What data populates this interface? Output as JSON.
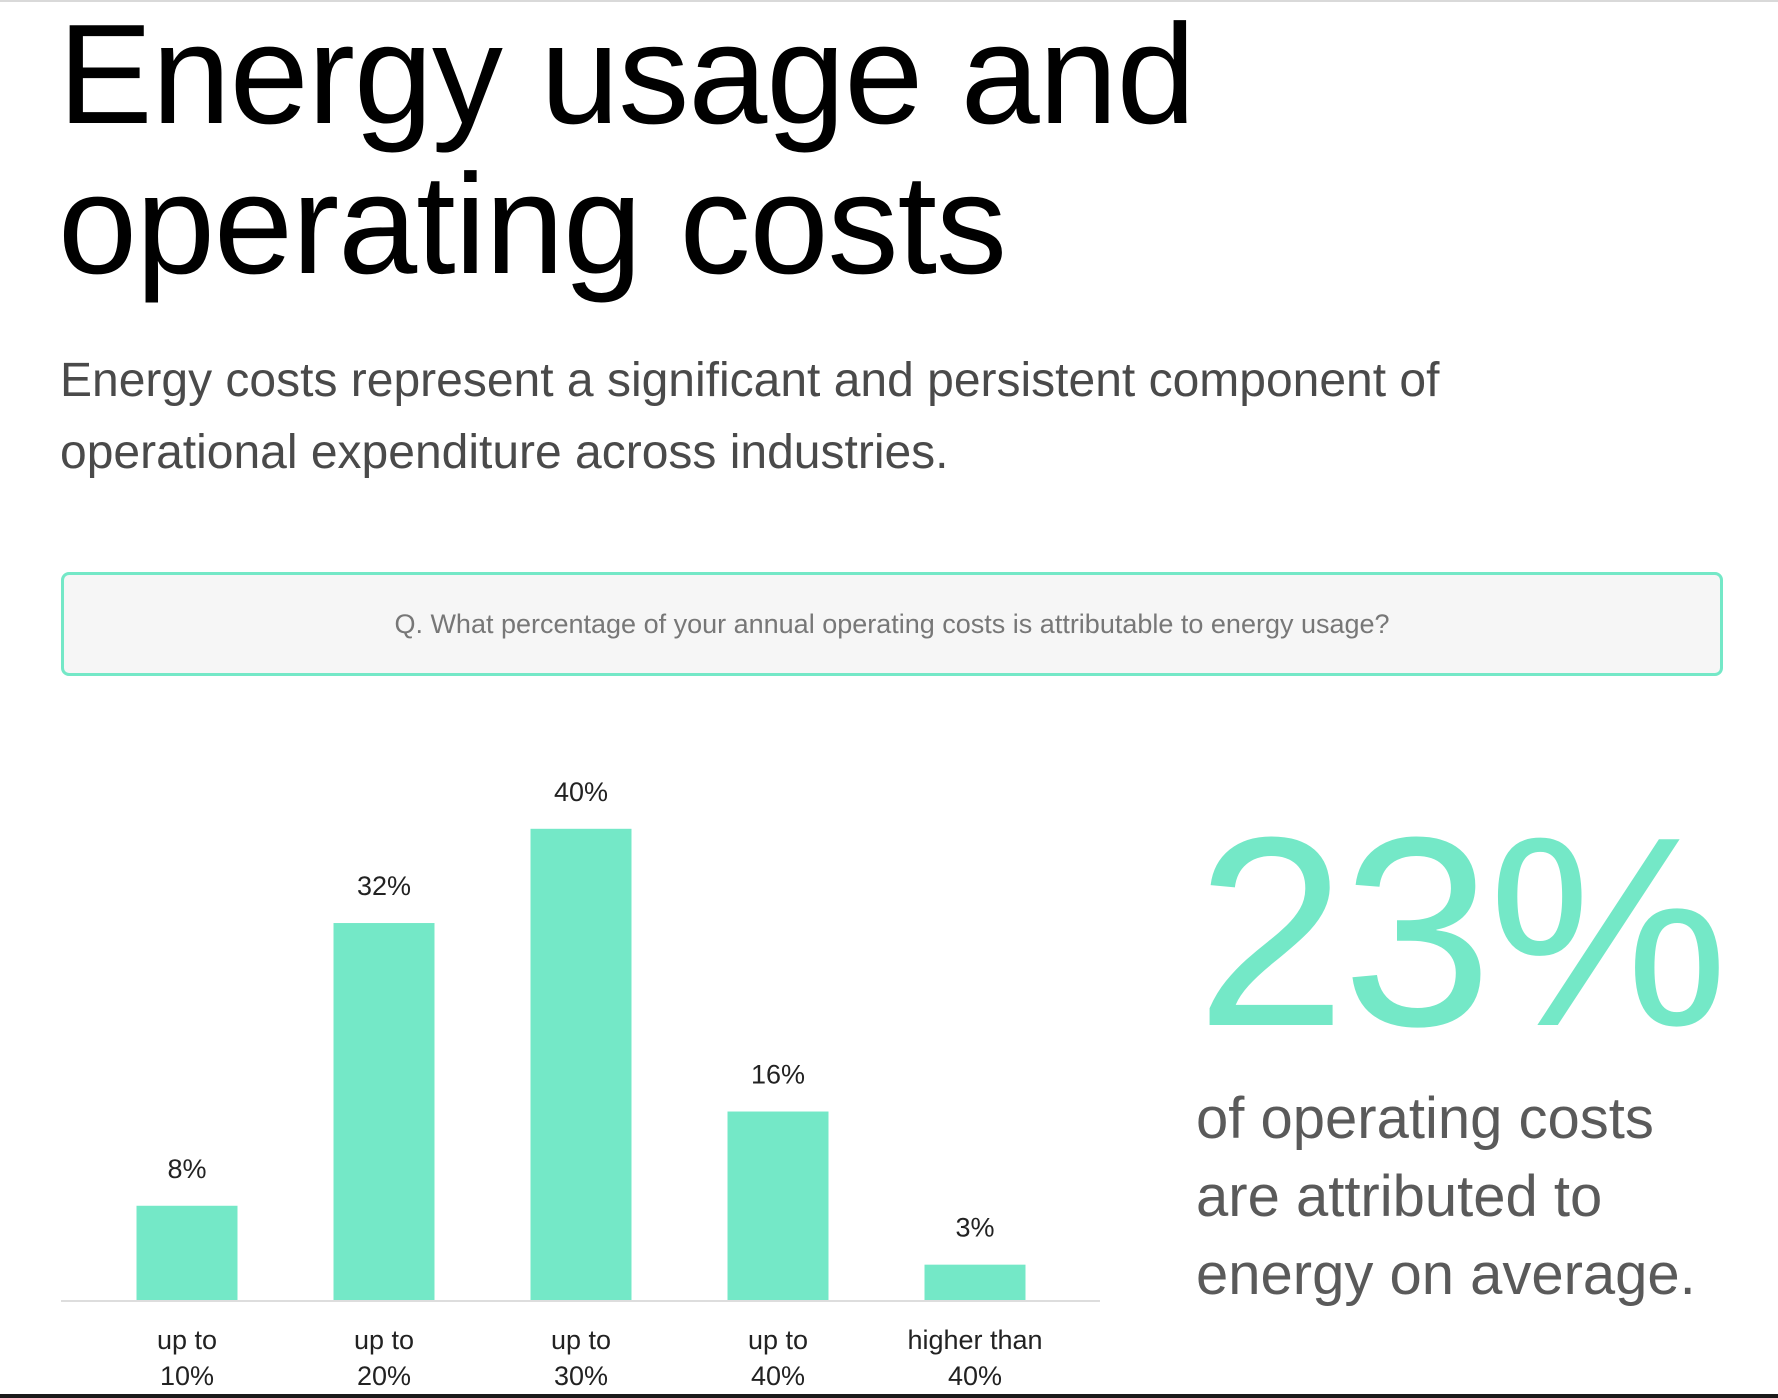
{
  "header": {
    "title_lines": [
      "Energy usage and",
      "operating costs"
    ],
    "subtitle_lines": [
      "Energy costs represent a significant and persistent component of",
      "operational expenditure across industries."
    ]
  },
  "question": {
    "text": "Q. What percentage of your annual operating costs is attributable to energy usage?"
  },
  "highlight": {
    "value": "23%",
    "caption_lines": [
      "of operating costs",
      "are attributed to",
      "energy on average."
    ]
  },
  "colors": {
    "accent": "#74e8c7",
    "title": "#000000",
    "subtitle": "#4a4a4a",
    "question_text": "#777777",
    "question_bg": "#f6f6f6"
  },
  "chart_data": {
    "type": "bar",
    "title": "",
    "xlabel": "",
    "ylabel": "",
    "categories": [
      [
        "up to",
        "10%"
      ],
      [
        "up to",
        "20%"
      ],
      [
        "up to",
        "30%"
      ],
      [
        "up to",
        "40%"
      ],
      [
        "higher than",
        "40%"
      ]
    ],
    "values": [
      8,
      32,
      40,
      16,
      3
    ],
    "value_labels": [
      "8%",
      "32%",
      "40%",
      "16%",
      "3%"
    ],
    "ylim": [
      0,
      40
    ],
    "grid": false,
    "legend": "none"
  }
}
